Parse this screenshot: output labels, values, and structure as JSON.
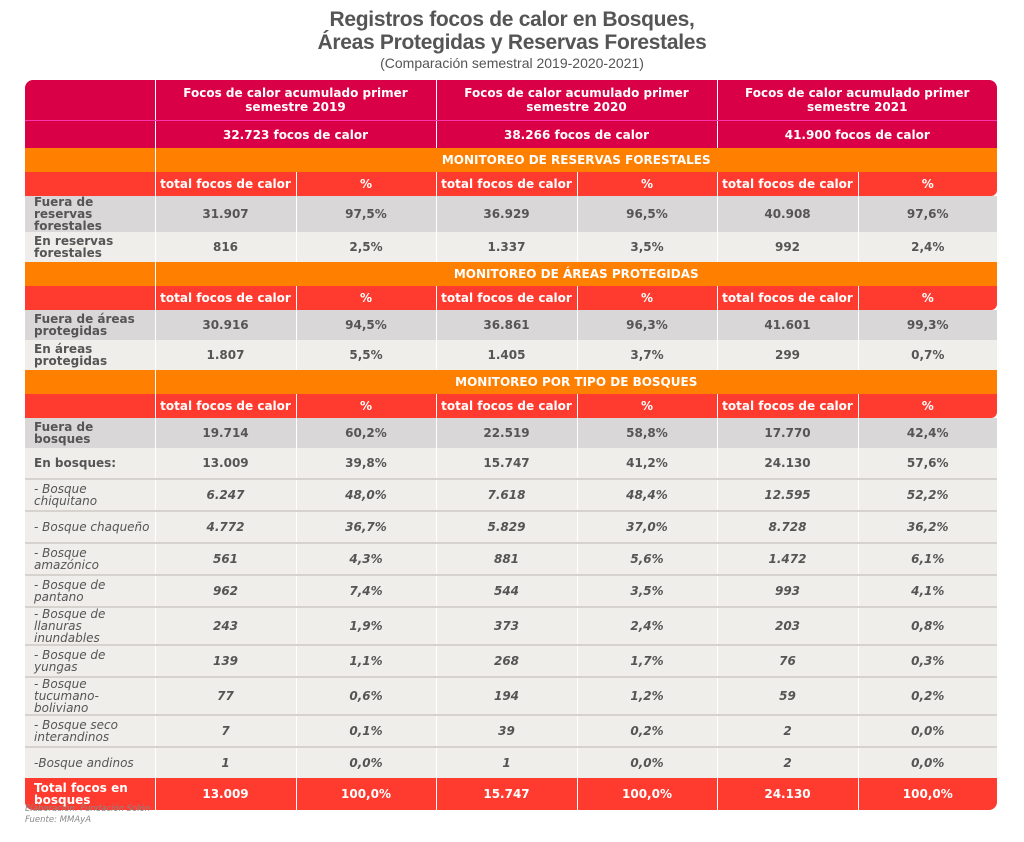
{
  "title": {
    "line1": "Registros focos de calor en Bosques,",
    "line2": "Áreas Protegidas y Reservas Forestales",
    "subtitle": "(Comparación semestral 2019-2020-2021)"
  },
  "header": {
    "periods": [
      {
        "label": "Focos de calor acumulado primer semestre 2019",
        "total": "32.723 focos de calor"
      },
      {
        "label": "Focos de calor acumulado primer semestre 2020",
        "total": "38.266 focos de calor"
      },
      {
        "label": "Focos de calor acumulado primer semestre 2021",
        "total": "41.900 focos de calor"
      }
    ],
    "col_total": "total focos de calor",
    "col_pct": "%"
  },
  "sections": [
    {
      "title": "MONITOREO DE RESERVAS FORESTALES",
      "rows": [
        {
          "label": "Fuera de reservas forestales",
          "style": "g",
          "values": [
            "31.907",
            "97,5%",
            "36.929",
            "96,5%",
            "40.908",
            "97,6%"
          ]
        },
        {
          "label": "En reservas forestales",
          "style": "l",
          "values": [
            "816",
            "2,5%",
            "1.337",
            "3,5%",
            "992",
            "2,4%"
          ]
        }
      ]
    },
    {
      "title": "MONITOREO DE ÁREAS PROTEGIDAS",
      "rows": [
        {
          "label": "Fuera de áreas protegidas",
          "style": "g",
          "values": [
            "30.916",
            "94,5%",
            "36.861",
            "96,3%",
            "41.601",
            "99,3%"
          ]
        },
        {
          "label": "En áreas protegidas",
          "style": "l",
          "values": [
            "1.807",
            "5,5%",
            "1.405",
            "3,7%",
            "299",
            "0,7%"
          ]
        }
      ]
    },
    {
      "title": "MONITOREO POR TIPO DE BOSQUES",
      "rows": [
        {
          "label": "Fuera de bosques",
          "style": "g",
          "values": [
            "19.714",
            "60,2%",
            "22.519",
            "58,8%",
            "17.770",
            "42,4%"
          ]
        },
        {
          "label": "En bosques:",
          "style": "l",
          "values": [
            "13.009",
            "39,8%",
            "15.747",
            "41,2%",
            "24.130",
            "57,6%"
          ]
        },
        {
          "label": "- Bosque chiquitano",
          "style": "i",
          "values": [
            "6.247",
            "48,0%",
            "7.618",
            "48,4%",
            "12.595",
            "52,2%"
          ]
        },
        {
          "label": "- Bosque chaqueño",
          "style": "i",
          "values": [
            "4.772",
            "36,7%",
            "5.829",
            "37,0%",
            "8.728",
            "36,2%"
          ]
        },
        {
          "label": "- Bosque amazónico",
          "style": "i",
          "values": [
            "561",
            "4,3%",
            "881",
            "5,6%",
            "1.472",
            "6,1%"
          ]
        },
        {
          "label": "- Bosque de pantano",
          "style": "i",
          "values": [
            "962",
            "7,4%",
            "544",
            "3,5%",
            "993",
            "4,1%"
          ]
        },
        {
          "label": "- Bosque de llanuras inundables",
          "style": "i",
          "values": [
            "243",
            "1,9%",
            "373",
            "2,4%",
            "203",
            "0,8%"
          ]
        },
        {
          "label": "- Bosque de yungas",
          "style": "i",
          "values": [
            "139",
            "1,1%",
            "268",
            "1,7%",
            "76",
            "0,3%"
          ]
        },
        {
          "label": "- Bosque tucumano-boliviano",
          "style": "i",
          "values": [
            "77",
            "0,6%",
            "194",
            "1,2%",
            "59",
            "0,2%"
          ]
        },
        {
          "label": "- Bosque seco interandinos",
          "style": "i",
          "values": [
            "7",
            "0,1%",
            "39",
            "0,2%",
            "2",
            "0,0%"
          ]
        },
        {
          "label": "-Bosque andinos",
          "style": "i",
          "values": [
            "1",
            "0,0%",
            "1",
            "0,0%",
            "2",
            "0,0%"
          ]
        },
        {
          "label": "Total focos en bosques",
          "style": "tot",
          "values": [
            "13.009",
            "100,0%",
            "15.747",
            "100,0%",
            "24.130",
            "100,0%"
          ]
        }
      ]
    }
  ],
  "footer": {
    "elaboracion": "Elaboración: Fundación Solón",
    "fuente": "Fuente: MMAyA"
  },
  "colors": {
    "crimson": "#DA0047",
    "orange": "#FF7F00",
    "red": "#FF3A2E",
    "row_gray": "#DAD7D8",
    "row_light": "#F0EEEA"
  }
}
